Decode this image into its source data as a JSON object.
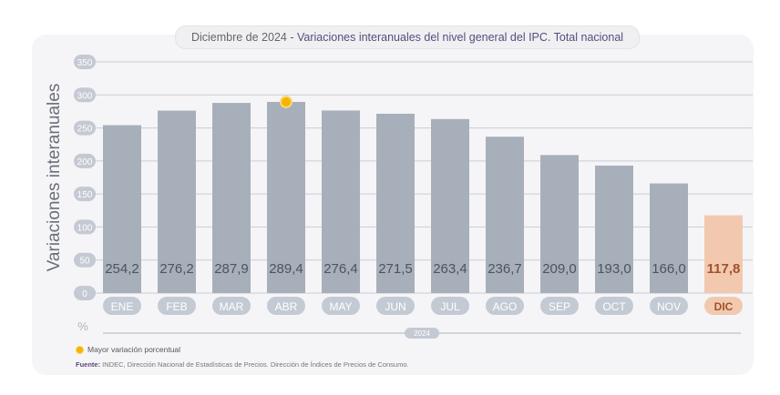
{
  "title": {
    "prefix": "Diciembre de 2024",
    "separator": " - ",
    "main": "Variaciones interanuales del nivel general del IPC. Total nacional"
  },
  "legend_label": "Mayor variación porcentual",
  "source": {
    "label": "Fuente:",
    "text": " INDEC, Dirección Nacional de Estadísticas de Precios. Dirección de Índices de Precios de Consumo."
  },
  "colors": {
    "bar": "#a7afbb",
    "highlight_bar": "#f2c9ae",
    "highlight_label": "#a0522d",
    "month_pill": "#c4cad4",
    "highlight_pill": "#f2c9ae",
    "marker": "#f5b400"
  },
  "chart_data": {
    "type": "bar",
    "categories": [
      "ENE",
      "FEB",
      "MAR",
      "ABR",
      "MAY",
      "JUN",
      "JUL",
      "AGO",
      "SEP",
      "OCT",
      "NOV",
      "DIC"
    ],
    "values": [
      254.2,
      276.2,
      287.9,
      289.4,
      276.4,
      271.5,
      263.4,
      236.7,
      209.0,
      193.0,
      166.0,
      117.8
    ],
    "value_labels": [
      "254,2",
      "276,2",
      "287,9",
      "289,4",
      "276,4",
      "271,5",
      "263,4",
      "236,7",
      "209,0",
      "193,0",
      "166,0",
      "117,8"
    ],
    "ylabel": "Variaciones interanuales",
    "yunit": "%",
    "ylim": [
      0,
      350
    ],
    "yticks": [
      0,
      50,
      100,
      150,
      200,
      250,
      300,
      350
    ],
    "year_label": "2024",
    "highlight_index": 11,
    "max_marker_index": 3,
    "grid": true
  }
}
